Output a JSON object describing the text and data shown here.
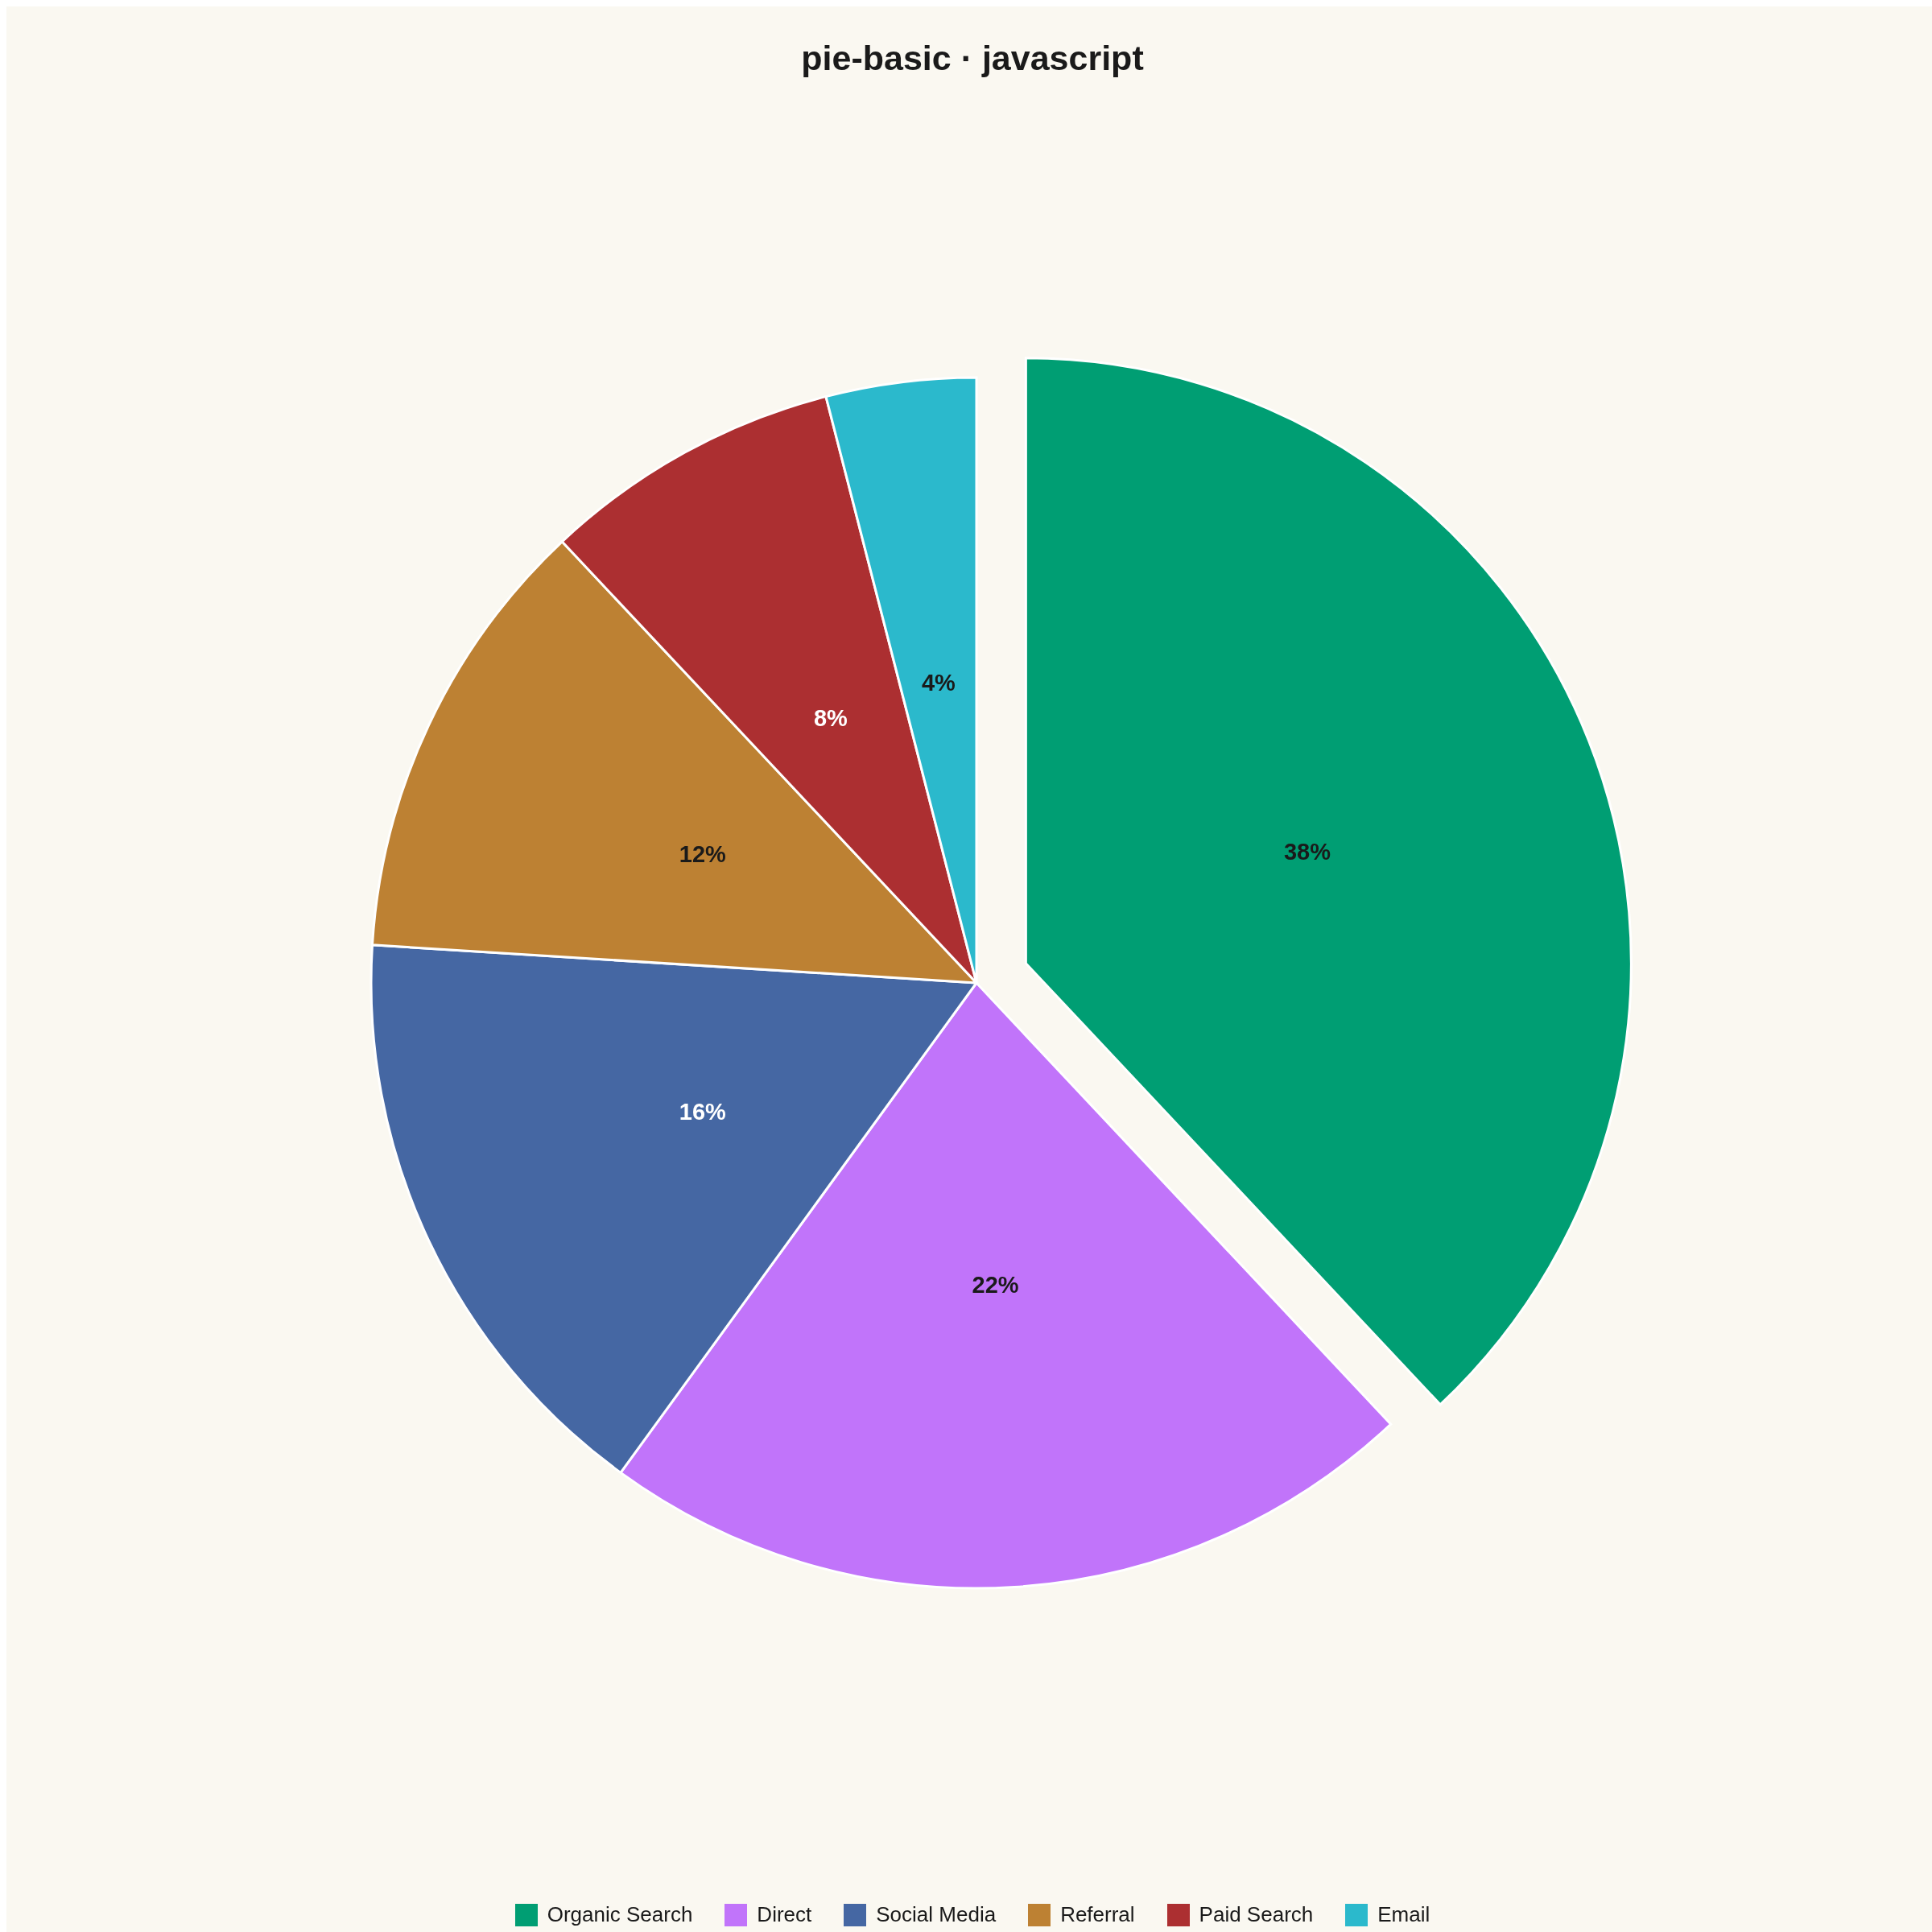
{
  "chart_data": {
    "type": "pie",
    "title": "pie-basic · javascript",
    "categories": [
      "Organic Search",
      "Direct",
      "Social Media",
      "Referral",
      "Paid Search",
      "Email"
    ],
    "values": [
      38,
      22,
      16,
      12,
      8,
      4
    ],
    "colors": [
      "#009e73",
      "#c174fa",
      "#4567a3",
      "#bd8133",
      "#ac2f31",
      "#2bb9cc"
    ],
    "value_labels": [
      "38%",
      "22%",
      "16%",
      "12%",
      "8%",
      "4%"
    ],
    "legend": "bottom"
  }
}
